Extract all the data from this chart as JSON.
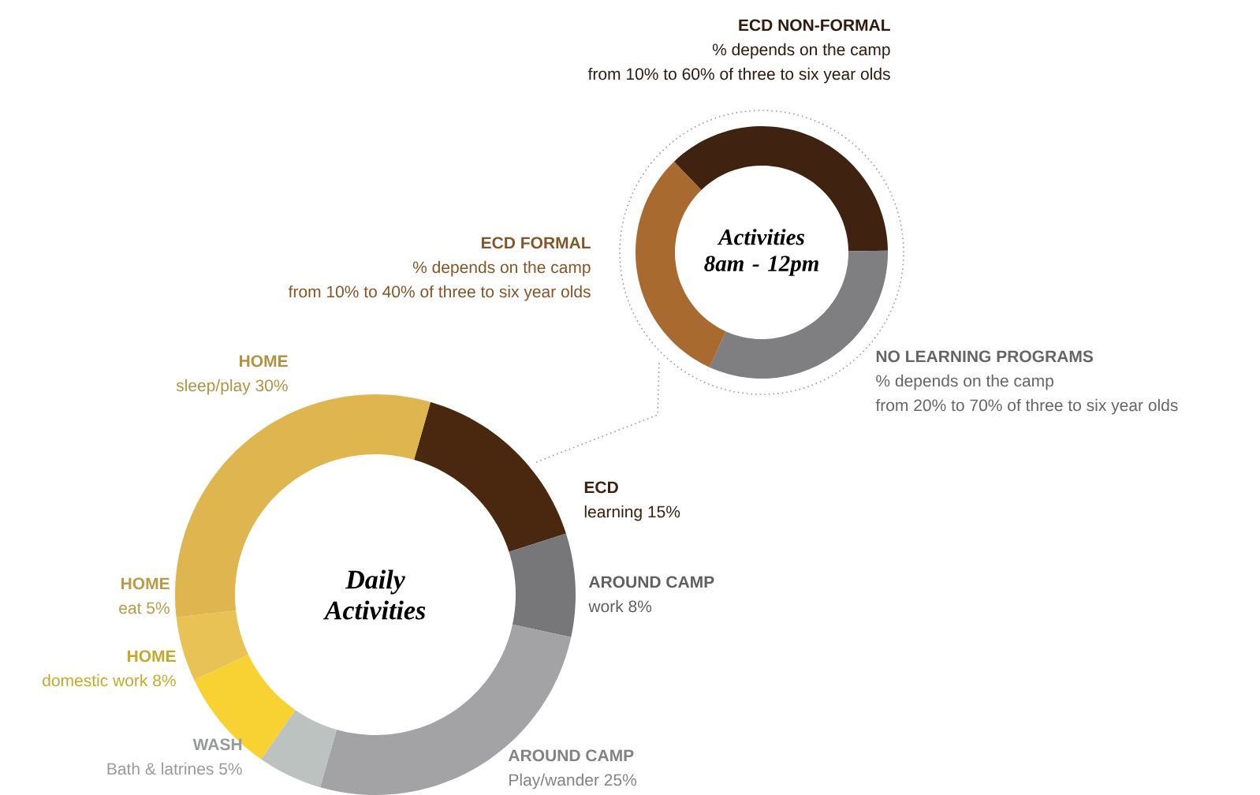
{
  "chart_data": [
    {
      "type": "donut",
      "title": "Daily Activities",
      "categories": [
        "ECD",
        "AROUND CAMP",
        "AROUND CAMP",
        "WASH",
        "HOME",
        "HOME",
        "HOME"
      ],
      "values": [
        15,
        8,
        25,
        5,
        8,
        5,
        30
      ],
      "value_labels": [
        "learning 15%",
        "work 8%",
        "Play/wander 25%",
        "Bath & latrines 5%",
        "domestic work 8%",
        "eat 5%",
        "sleep/play 30%"
      ],
      "colors": [
        "#4a2810",
        "#77777a",
        "#a3a3a6",
        "#bcc2bf",
        "#f7d232",
        "#e9c255",
        "#dfb550"
      ]
    },
    {
      "type": "donut",
      "title": "Activities 8am - 12pm",
      "categories": [
        "ECD NON-FORMAL",
        "NO LEARNING PROGRAMS",
        "ECD FORMAL"
      ],
      "values": [
        37,
        32,
        31
      ],
      "annotations": [
        "% depends on the camp",
        "from 10% to 60% of three to six year olds",
        "% depends on the camp",
        "from 20% to 70% of three to six year olds",
        "% depends on the camp",
        "from 10% to 40% of three to six year olds"
      ],
      "colors": [
        "#3f2210",
        "#7f7f82",
        "#a86a2e"
      ]
    }
  ]
}
